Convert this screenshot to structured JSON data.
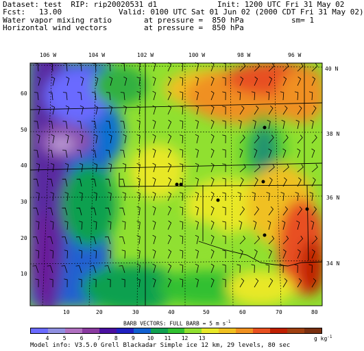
{
  "header": {
    "dataset": "Dataset: test  RIP: rip20020531 d1",
    "init": "Init: 1200 UTC Fri 31 May 02",
    "fcst": "Fcst:   13.00",
    "valid": "Valid: 0100 UTC Sat 01 Jun 02 (2000 CDT Fri 31 May 02)",
    "field1": "Water vapor mixing ratio",
    "field1_level": "at pressure =  850 hPa",
    "field1_sm": "sm= 1",
    "field2": "Horizontal wind vectors",
    "field2_level": "at pressure =  850 hPa"
  },
  "map": {
    "lon_labels": [
      "106 W",
      "104 W",
      "102 W",
      "100 W",
      "98 W",
      "96 W"
    ],
    "lat_labels": [
      "40 N",
      "38 N",
      "36 N",
      "34 N"
    ],
    "x_ticks": [
      "10",
      "20",
      "30",
      "40",
      "50",
      "60",
      "70",
      "80"
    ],
    "y_ticks": [
      "10",
      "20",
      "30",
      "40",
      "50",
      "60"
    ]
  },
  "footer": {
    "barb_note": "BARB VECTORS:  FULL BARB = 5 m s",
    "barb_exp": "-1",
    "colorbar_labels": [
      "4",
      "5",
      "6",
      "7",
      "8",
      "9",
      "10",
      "11",
      "12",
      "13"
    ],
    "colorbar_unit": "g kg",
    "colorbar_unit_exp": "-1",
    "model_info": "Model info: V3.5.0  Grell     Blackadar   Simple ice     12 km,  29 levels,   80 sec"
  },
  "colors": [
    "#6a6aff",
    "#8f8fe0",
    "#b070c0",
    "#8a3aa0",
    "#4a10a0",
    "#2020c0",
    "#1060d0",
    "#10a050",
    "#30c030",
    "#90e030",
    "#e8e828",
    "#f0c020",
    "#f09020",
    "#e85020",
    "#c02000",
    "#a04010",
    "#7a3010"
  ]
}
